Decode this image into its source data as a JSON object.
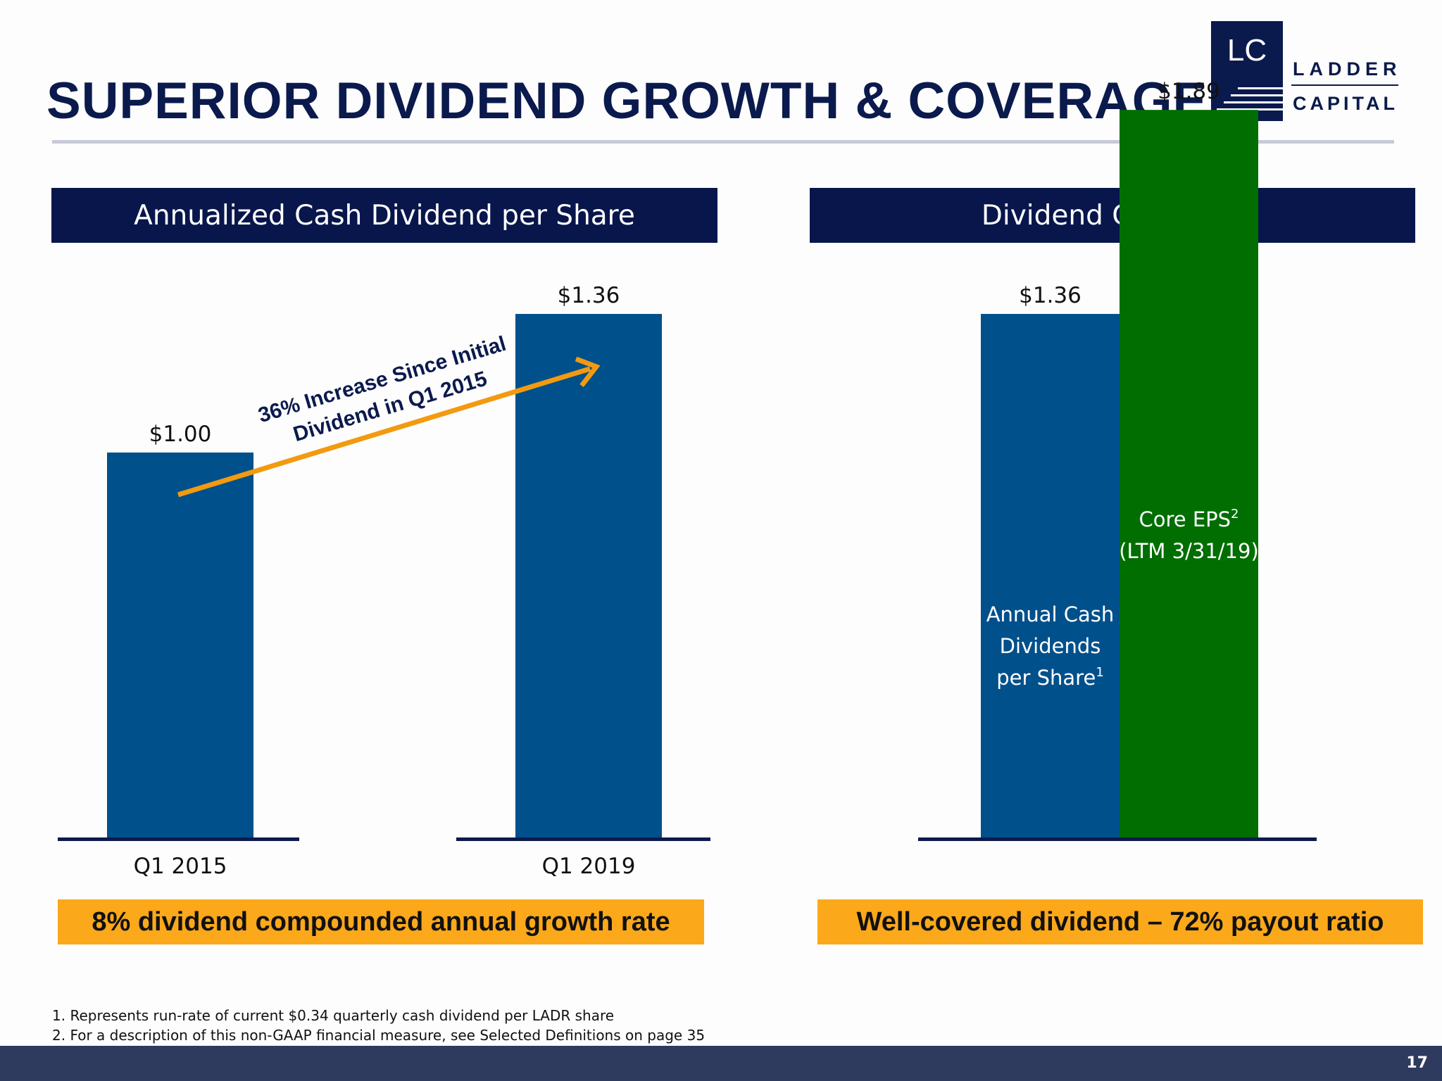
{
  "page": {
    "title": "SUPERIOR DIVIDEND GROWTH & COVERAGE",
    "page_number": "17",
    "logo": {
      "initials": "LC",
      "line1": "LADDER",
      "line2": "CAPITAL"
    },
    "left_panel": {
      "header": "Annualized Cash Dividend per Share",
      "callout": "8% dividend compounded annual growth rate",
      "annotation_line1": "36% Increase Since Initial",
      "annotation_line2": "Dividend in Q1 2015"
    },
    "right_panel": {
      "header": "Dividend Coverage",
      "callout": "Well-covered dividend – 72% payout ratio"
    },
    "footnotes": [
      "1. Represents run-rate of current $0.34 quarterly cash dividend per LADR share",
      "2. For a description of this non-GAAP financial measure, see Selected Definitions on page 35"
    ]
  },
  "colors": {
    "navy": "#08164b",
    "bar_blue": "#00508b",
    "bar_green": "#006e00",
    "accent_orange": "#fba81a",
    "arrow_orange": "#f29a10"
  },
  "chart_data": [
    {
      "type": "bar",
      "title": "Annualized Cash Dividend per Share",
      "categories": [
        "Q1 2015",
        "Q1 2019"
      ],
      "values": [
        1.0,
        1.36
      ],
      "data_labels": [
        "$1.00",
        "$1.36"
      ],
      "ylim": [
        0,
        2.0
      ],
      "grid": false
    },
    {
      "type": "bar",
      "title": "Dividend Coverage",
      "categories": [
        "Annual Cash Dividends per Share",
        "Core EPS (LTM 3/31/19)"
      ],
      "values": [
        1.36,
        1.89
      ],
      "data_labels": [
        "$1.36",
        "$1.89"
      ],
      "bar_labels": [
        {
          "lines": [
            "Annual Cash",
            "Dividends",
            "per Share"
          ],
          "sup": "1"
        },
        {
          "lines": [
            "Core EPS",
            "(LTM 3/31/19)"
          ],
          "sup": "2"
        }
      ],
      "ylim": [
        0,
        2.0
      ],
      "grid": false
    }
  ]
}
